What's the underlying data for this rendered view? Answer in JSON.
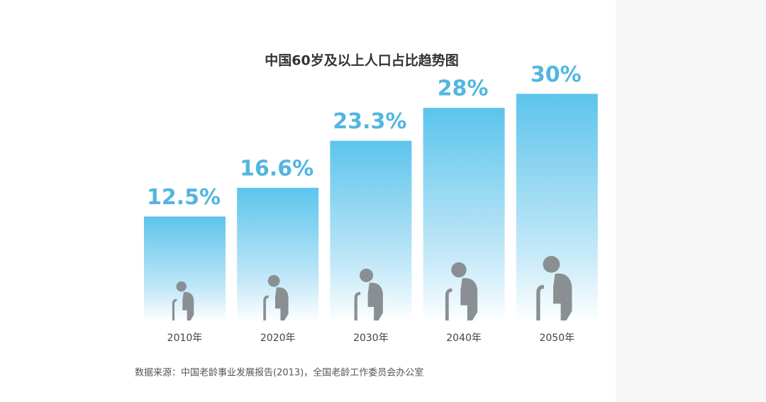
{
  "chart_data": {
    "type": "bar",
    "title": "中国60岁及以上人口占比趋势图",
    "categories": [
      "2010年",
      "2020年",
      "2030年",
      "2040年",
      "2050年"
    ],
    "values": [
      12.5,
      16.6,
      23.3,
      28,
      30
    ],
    "value_labels": [
      "12.5%",
      "16.6%",
      "23.3%",
      "28%",
      "30%"
    ],
    "color": "#5cc4ec",
    "source": "数据来源：中国老龄事业发展报告(2013)，全国老龄工作委员会办公室"
  }
}
